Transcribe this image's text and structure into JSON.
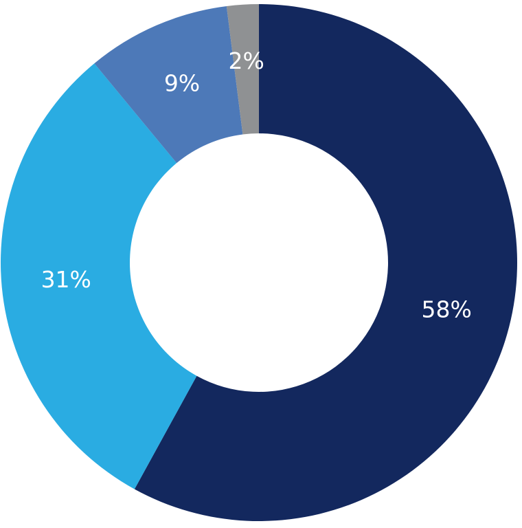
{
  "chart_data": {
    "type": "pie",
    "variant": "donut",
    "title": "",
    "slices": [
      {
        "label": "58%",
        "value": 58,
        "color": "#13285e"
      },
      {
        "label": "31%",
        "value": 31,
        "color": "#2aace2"
      },
      {
        "label": "9%",
        "value": 9,
        "color": "#4d79b8"
      },
      {
        "label": "2%",
        "value": 2,
        "color": "#8f9193"
      }
    ],
    "start_position": "top",
    "direction": "clockwise",
    "legend": "none"
  }
}
